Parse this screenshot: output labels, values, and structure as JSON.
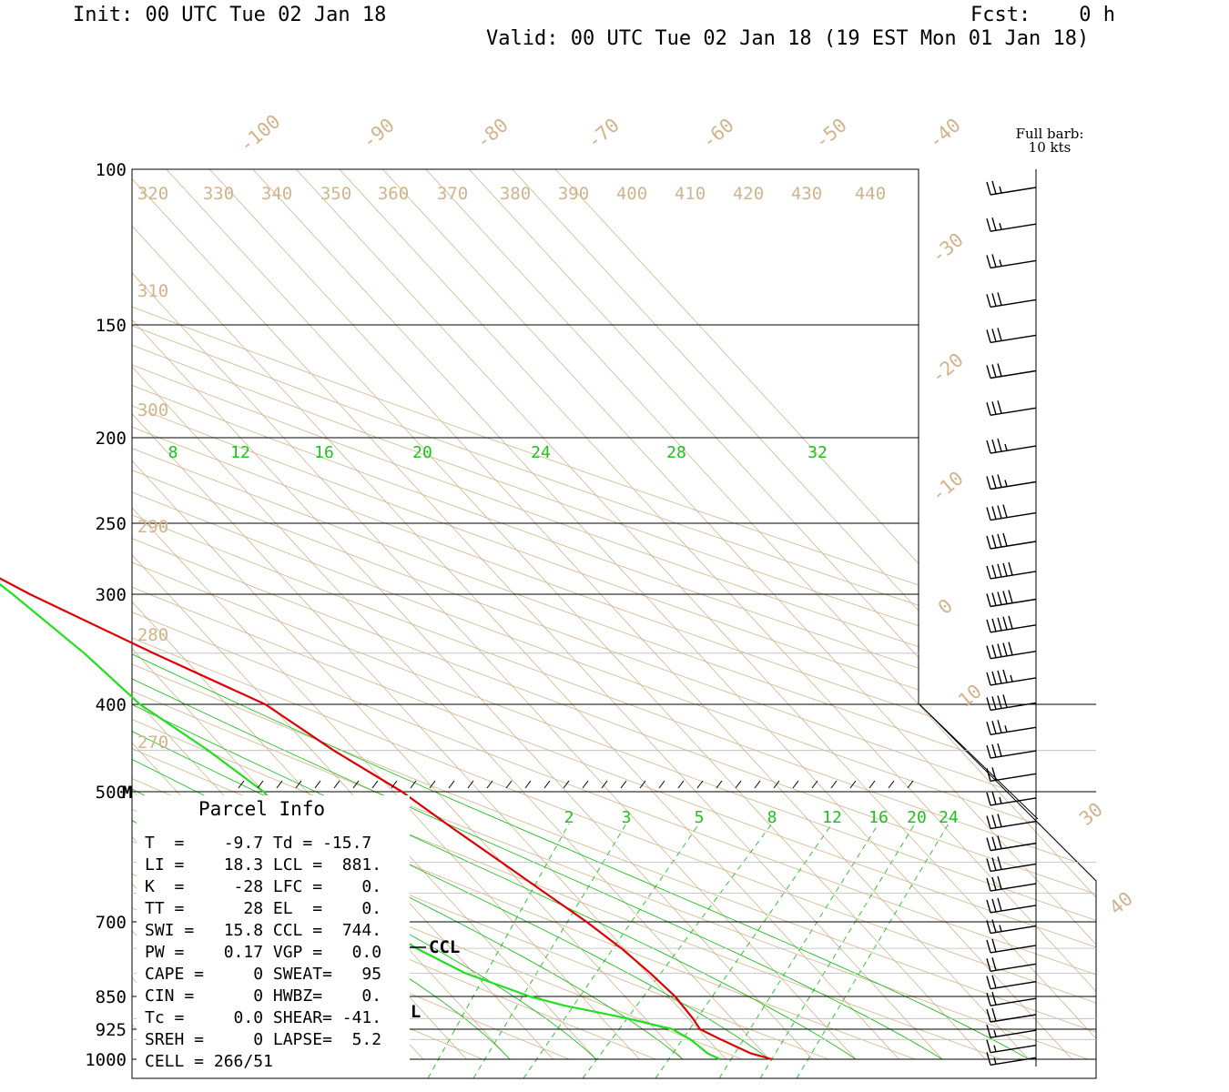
{
  "header": {
    "init": "Init: 00 UTC Tue 02 Jan 18",
    "fcst": "Fcst:    0 h",
    "valid": "Valid: 00 UTC Tue 02 Jan 18 (19 EST Mon 01 Jan 18)"
  },
  "chart_data": {
    "type": "skew-t",
    "pressure_levels": [
      {
        "p": 100,
        "label": "100"
      },
      {
        "p": 150,
        "label": "150"
      },
      {
        "p": 200,
        "label": "200"
      },
      {
        "p": 250,
        "label": "250"
      },
      {
        "p": 300,
        "label": "300"
      },
      {
        "p": 400,
        "label": "400"
      },
      {
        "p": 500,
        "label": "500"
      },
      {
        "p": 700,
        "label": "700"
      },
      {
        "p": 850,
        "label": "850"
      },
      {
        "p": 925,
        "label": "925"
      },
      {
        "p": 1000,
        "label": "1000"
      }
    ],
    "plim": [
      100,
      1000
    ],
    "temperature_isotherms": [
      "-100",
      "-90",
      "-80",
      "-70",
      "-60",
      "-50",
      "-40",
      "-30",
      "-20",
      "-10",
      "0",
      "10",
      "30",
      "40"
    ],
    "theta_labels": [
      "320",
      "330",
      "340",
      "350",
      "360",
      "370",
      "380",
      "390",
      "400",
      "410",
      "420",
      "430",
      "440",
      "310",
      "300",
      "290",
      "280",
      "270"
    ],
    "theta_e_labels": [
      "8",
      "12",
      "16",
      "20",
      "24",
      "28",
      "32"
    ],
    "mixing_ratio_labels": [
      "2",
      "3",
      "5",
      "8",
      "12",
      "16",
      "20",
      "24"
    ],
    "series": [
      {
        "name": "temperature",
        "color": "#e00000",
        "points": [
          [
            1000,
            -9.7
          ],
          [
            985,
            -11.5
          ],
          [
            950,
            -13.5
          ],
          [
            925,
            -14.8
          ],
          [
            900,
            -14.5
          ],
          [
            850,
            -14.2
          ],
          [
            800,
            -14.6
          ],
          [
            750,
            -15.3
          ],
          [
            700,
            -16.5
          ],
          [
            650,
            -18.2
          ],
          [
            600,
            -20.0
          ],
          [
            550,
            -22.0
          ],
          [
            500,
            -24.0
          ],
          [
            450,
            -27.5
          ],
          [
            400,
            -30.5
          ],
          [
            350,
            -38
          ],
          [
            300,
            -46
          ],
          [
            250,
            -54
          ],
          [
            220,
            -58
          ],
          [
            200,
            -60
          ],
          [
            175,
            -62
          ],
          [
            150,
            -63
          ],
          [
            125,
            -65
          ],
          [
            100,
            -67
          ]
        ]
      },
      {
        "name": "dewpoint",
        "color": "#20e020",
        "points": [
          [
            1000,
            -15.7
          ],
          [
            985,
            -16.5
          ],
          [
            950,
            -17
          ],
          [
            925,
            -18
          ],
          [
            900,
            -22
          ],
          [
            870,
            -28
          ],
          [
            850,
            -31
          ],
          [
            800,
            -36
          ],
          [
            750,
            -39
          ],
          [
            700,
            -41
          ],
          [
            650,
            -40
          ],
          [
            600,
            -39
          ],
          [
            550,
            -40
          ],
          [
            500,
            -40
          ],
          [
            450,
            -42
          ],
          [
            400,
            -45
          ],
          [
            350,
            -46
          ],
          [
            300,
            -48
          ],
          [
            250,
            -51
          ],
          [
            200,
            -56
          ],
          [
            175,
            -58
          ],
          [
            160,
            -61
          ],
          [
            150,
            -63
          ],
          [
            125,
            -68
          ],
          [
            100,
            -74
          ]
        ]
      }
    ],
    "markers": {
      "ccl": "CCL",
      "lcl": "LCL",
      "m": "M"
    },
    "wind_barbs": {
      "note_line1": "Full barb:",
      "note_line2": "10 kts",
      "levels": [
        {
          "p": 100,
          "speed": 25
        },
        {
          "p": 110,
          "speed": 25
        },
        {
          "p": 121,
          "speed": 25
        },
        {
          "p": 134,
          "speed": 30
        },
        {
          "p": 147,
          "speed": 30
        },
        {
          "p": 161,
          "speed": 30
        },
        {
          "p": 177,
          "speed": 30
        },
        {
          "p": 195,
          "speed": 35
        },
        {
          "p": 214,
          "speed": 35
        },
        {
          "p": 232,
          "speed": 40
        },
        {
          "p": 250,
          "speed": 40
        },
        {
          "p": 270,
          "speed": 50
        },
        {
          "p": 290,
          "speed": 50
        },
        {
          "p": 310,
          "speed": 50
        },
        {
          "p": 332,
          "speed": 50
        },
        {
          "p": 356,
          "speed": 45
        },
        {
          "p": 380,
          "speed": 40
        },
        {
          "p": 405,
          "speed": 35
        },
        {
          "p": 430,
          "speed": 30
        },
        {
          "p": 456,
          "speed": 20
        },
        {
          "p": 485,
          "speed": 25
        },
        {
          "p": 515,
          "speed": 30
        },
        {
          "p": 545,
          "speed": 30
        },
        {
          "p": 575,
          "speed": 30
        },
        {
          "p": 605,
          "speed": 30
        },
        {
          "p": 640,
          "speed": 30
        },
        {
          "p": 675,
          "speed": 25
        },
        {
          "p": 710,
          "speed": 20
        },
        {
          "p": 745,
          "speed": 20
        },
        {
          "p": 780,
          "speed": 20
        },
        {
          "p": 815,
          "speed": 20
        },
        {
          "p": 850,
          "speed": 20
        },
        {
          "p": 885,
          "speed": 15
        },
        {
          "p": 920,
          "speed": 15
        },
        {
          "p": 950,
          "speed": 15
        },
        {
          "p": 975,
          "speed": 15
        },
        {
          "p": 1000,
          "speed": 10
        }
      ]
    }
  },
  "parcel": {
    "title": "Parcel Info",
    "rows": [
      "T  =    -9.7 Td = -15.7",
      "LI =    18.3 LCL =  881.",
      "K  =     -28 LFC =    0.",
      "TT =      28 EL  =    0.",
      "SWI =   15.8 CCL =  744.",
      "PW =    0.17 VGP =   0.0",
      "CAPE =     0 SWEAT=   95",
      "CIN =      0 HWBZ=    0.",
      "Tc =     0.0 SHEAR= -41.",
      "SREH =     0 LAPSE=  5.2",
      "CELL = 266/51"
    ]
  }
}
